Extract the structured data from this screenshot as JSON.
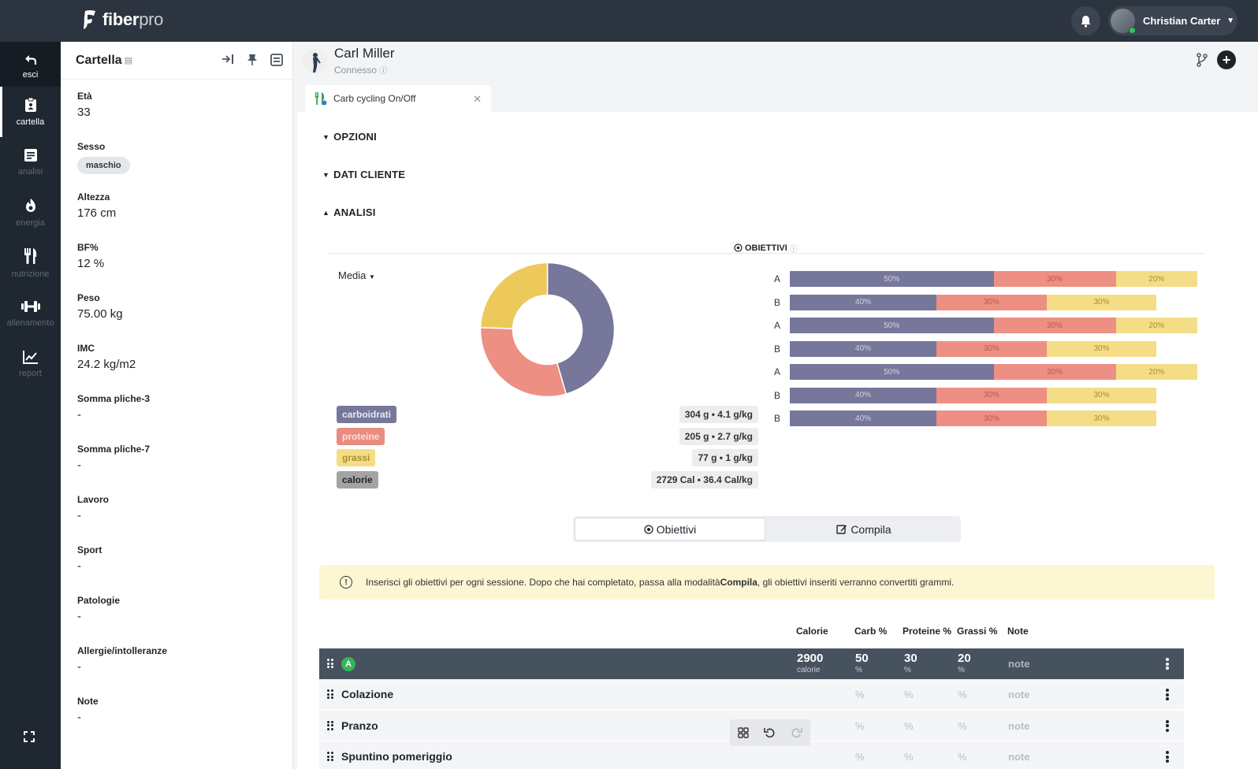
{
  "topbar": {
    "logo_main": "fiber",
    "logo_sub": "pro",
    "user_name": "Christian Carter"
  },
  "nav": [
    {
      "label": "esci",
      "icon": "back-arrow-icon"
    },
    {
      "label": "cartella",
      "icon": "clipboard-icon"
    },
    {
      "label": "analisi",
      "icon": "document-icon"
    },
    {
      "label": "energia",
      "icon": "flame-icon"
    },
    {
      "label": "nutrizione",
      "icon": "fork-knife-icon"
    },
    {
      "label": "allenamento",
      "icon": "dumbbell-icon"
    },
    {
      "label": "report",
      "icon": "chart-icon"
    }
  ],
  "cartella": {
    "title": "Cartella",
    "fields": [
      {
        "label": "Età",
        "value": "33"
      },
      {
        "label": "Sesso",
        "value": "maschio",
        "pill": true
      },
      {
        "label": "Altezza",
        "value": "176 cm"
      },
      {
        "label": "BF%",
        "value": "12 %"
      },
      {
        "label": "Peso",
        "value": "75.00 kg"
      },
      {
        "label": "IMC",
        "value": "24.2 kg/m2"
      },
      {
        "label": "Somma pliche-3",
        "value": "-"
      },
      {
        "label": "Somma pliche-7",
        "value": "-"
      },
      {
        "label": "Lavoro",
        "value": "-"
      },
      {
        "label": "Sport",
        "value": "-"
      },
      {
        "label": "Patologie",
        "value": "-"
      },
      {
        "label": "Allergie/intolleranze",
        "value": "-"
      },
      {
        "label": "Note",
        "value": "-"
      }
    ]
  },
  "client": {
    "name": "Carl Miller",
    "status": "Connesso"
  },
  "tab": {
    "label": "Carb cycling On/Off"
  },
  "sections": {
    "opzioni": "OPZIONI",
    "dati_cliente": "DATI CLIENTE",
    "analisi": "ANALISI"
  },
  "objectives": {
    "title": "OBIETTIVI",
    "mode": "Media"
  },
  "macros": [
    {
      "name": "carboidrati",
      "value": "304 g • 4.1 g/kg",
      "bg": "#76779a",
      "fg": "#e9e9f2"
    },
    {
      "name": "proteine",
      "value": "205 g • 2.7 g/kg",
      "bg": "#ea8b80",
      "fg": "#f9e0dc"
    },
    {
      "name": "grassi",
      "value": "77 g • 1 g/kg",
      "bg": "#f4dd86",
      "fg": "#a7902d"
    },
    {
      "name": "calorie",
      "value": "2729 Cal • 36.4 Cal/kg",
      "bg": "#a3a3a3",
      "fg": "#1f2329"
    }
  ],
  "chart_data": {
    "type": "pie",
    "categories": [
      "carboidrati",
      "proteine",
      "grassi"
    ],
    "values": [
      45.5,
      30,
      24.5
    ],
    "colors": [
      "#76779a",
      "#ee8f84",
      "#ecc95a"
    ]
  },
  "sessions": [
    {
      "label": "A",
      "carb": 50,
      "prot": 30,
      "fat": 20,
      "total": 1,
      "carb_label": "50%",
      "prot_label": "30%",
      "fat_label": "20%"
    },
    {
      "label": "B",
      "carb": 40,
      "prot": 30,
      "fat": 30,
      "total": 0.9,
      "carb_label": "40%",
      "prot_label": "30%",
      "fat_label": "30%"
    },
    {
      "label": "A",
      "carb": 50,
      "prot": 30,
      "fat": 20,
      "total": 1,
      "carb_label": "50%",
      "prot_label": "30%",
      "fat_label": "20%"
    },
    {
      "label": "B",
      "carb": 40,
      "prot": 30,
      "fat": 30,
      "total": 0.9,
      "carb_label": "40%",
      "prot_label": "30%",
      "fat_label": "30%"
    },
    {
      "label": "A",
      "carb": 50,
      "prot": 30,
      "fat": 20,
      "total": 1,
      "carb_label": "50%",
      "prot_label": "30%",
      "fat_label": "20%"
    },
    {
      "label": "B",
      "carb": 40,
      "prot": 30,
      "fat": 30,
      "total": 0.9,
      "carb_label": "40%",
      "prot_label": "30%",
      "fat_label": "30%"
    },
    {
      "label": "B",
      "carb": 40,
      "prot": 30,
      "fat": 30,
      "total": 0.9,
      "carb_label": "40%",
      "prot_label": "30%",
      "fat_label": "30%"
    }
  ],
  "toggle": {
    "obiettivi": "Obiettivi",
    "compila": "Compila"
  },
  "notice": {
    "pre": "Inserisci gli obiettivi per ogni sessione. Dopo che hai completato, passa alla modalità ",
    "bold": "Compila",
    "post": ", gli obiettivi inseriti verranno convertiti grammi."
  },
  "table": {
    "headers": {
      "calorie": "Calorie",
      "carb": "Carb %",
      "proteine": "Proteine %",
      "grassi": "Grassi %",
      "note": "Note"
    },
    "session_row": {
      "badge": "A",
      "calorie": "2900",
      "calorie_unit": "calorie",
      "carb": "50",
      "prot": "30",
      "fat": "20",
      "unit": "%",
      "note": "note"
    },
    "meals": [
      {
        "name": "Colazione",
        "carb": "%",
        "prot": "%",
        "fat": "%",
        "note": "note"
      },
      {
        "name": "Pranzo",
        "carb": "%",
        "prot": "%",
        "fat": "%",
        "note": "note"
      },
      {
        "name": "Spuntino pomeriggio",
        "carb": "%",
        "prot": "%",
        "fat": "%",
        "note": "note"
      }
    ]
  }
}
